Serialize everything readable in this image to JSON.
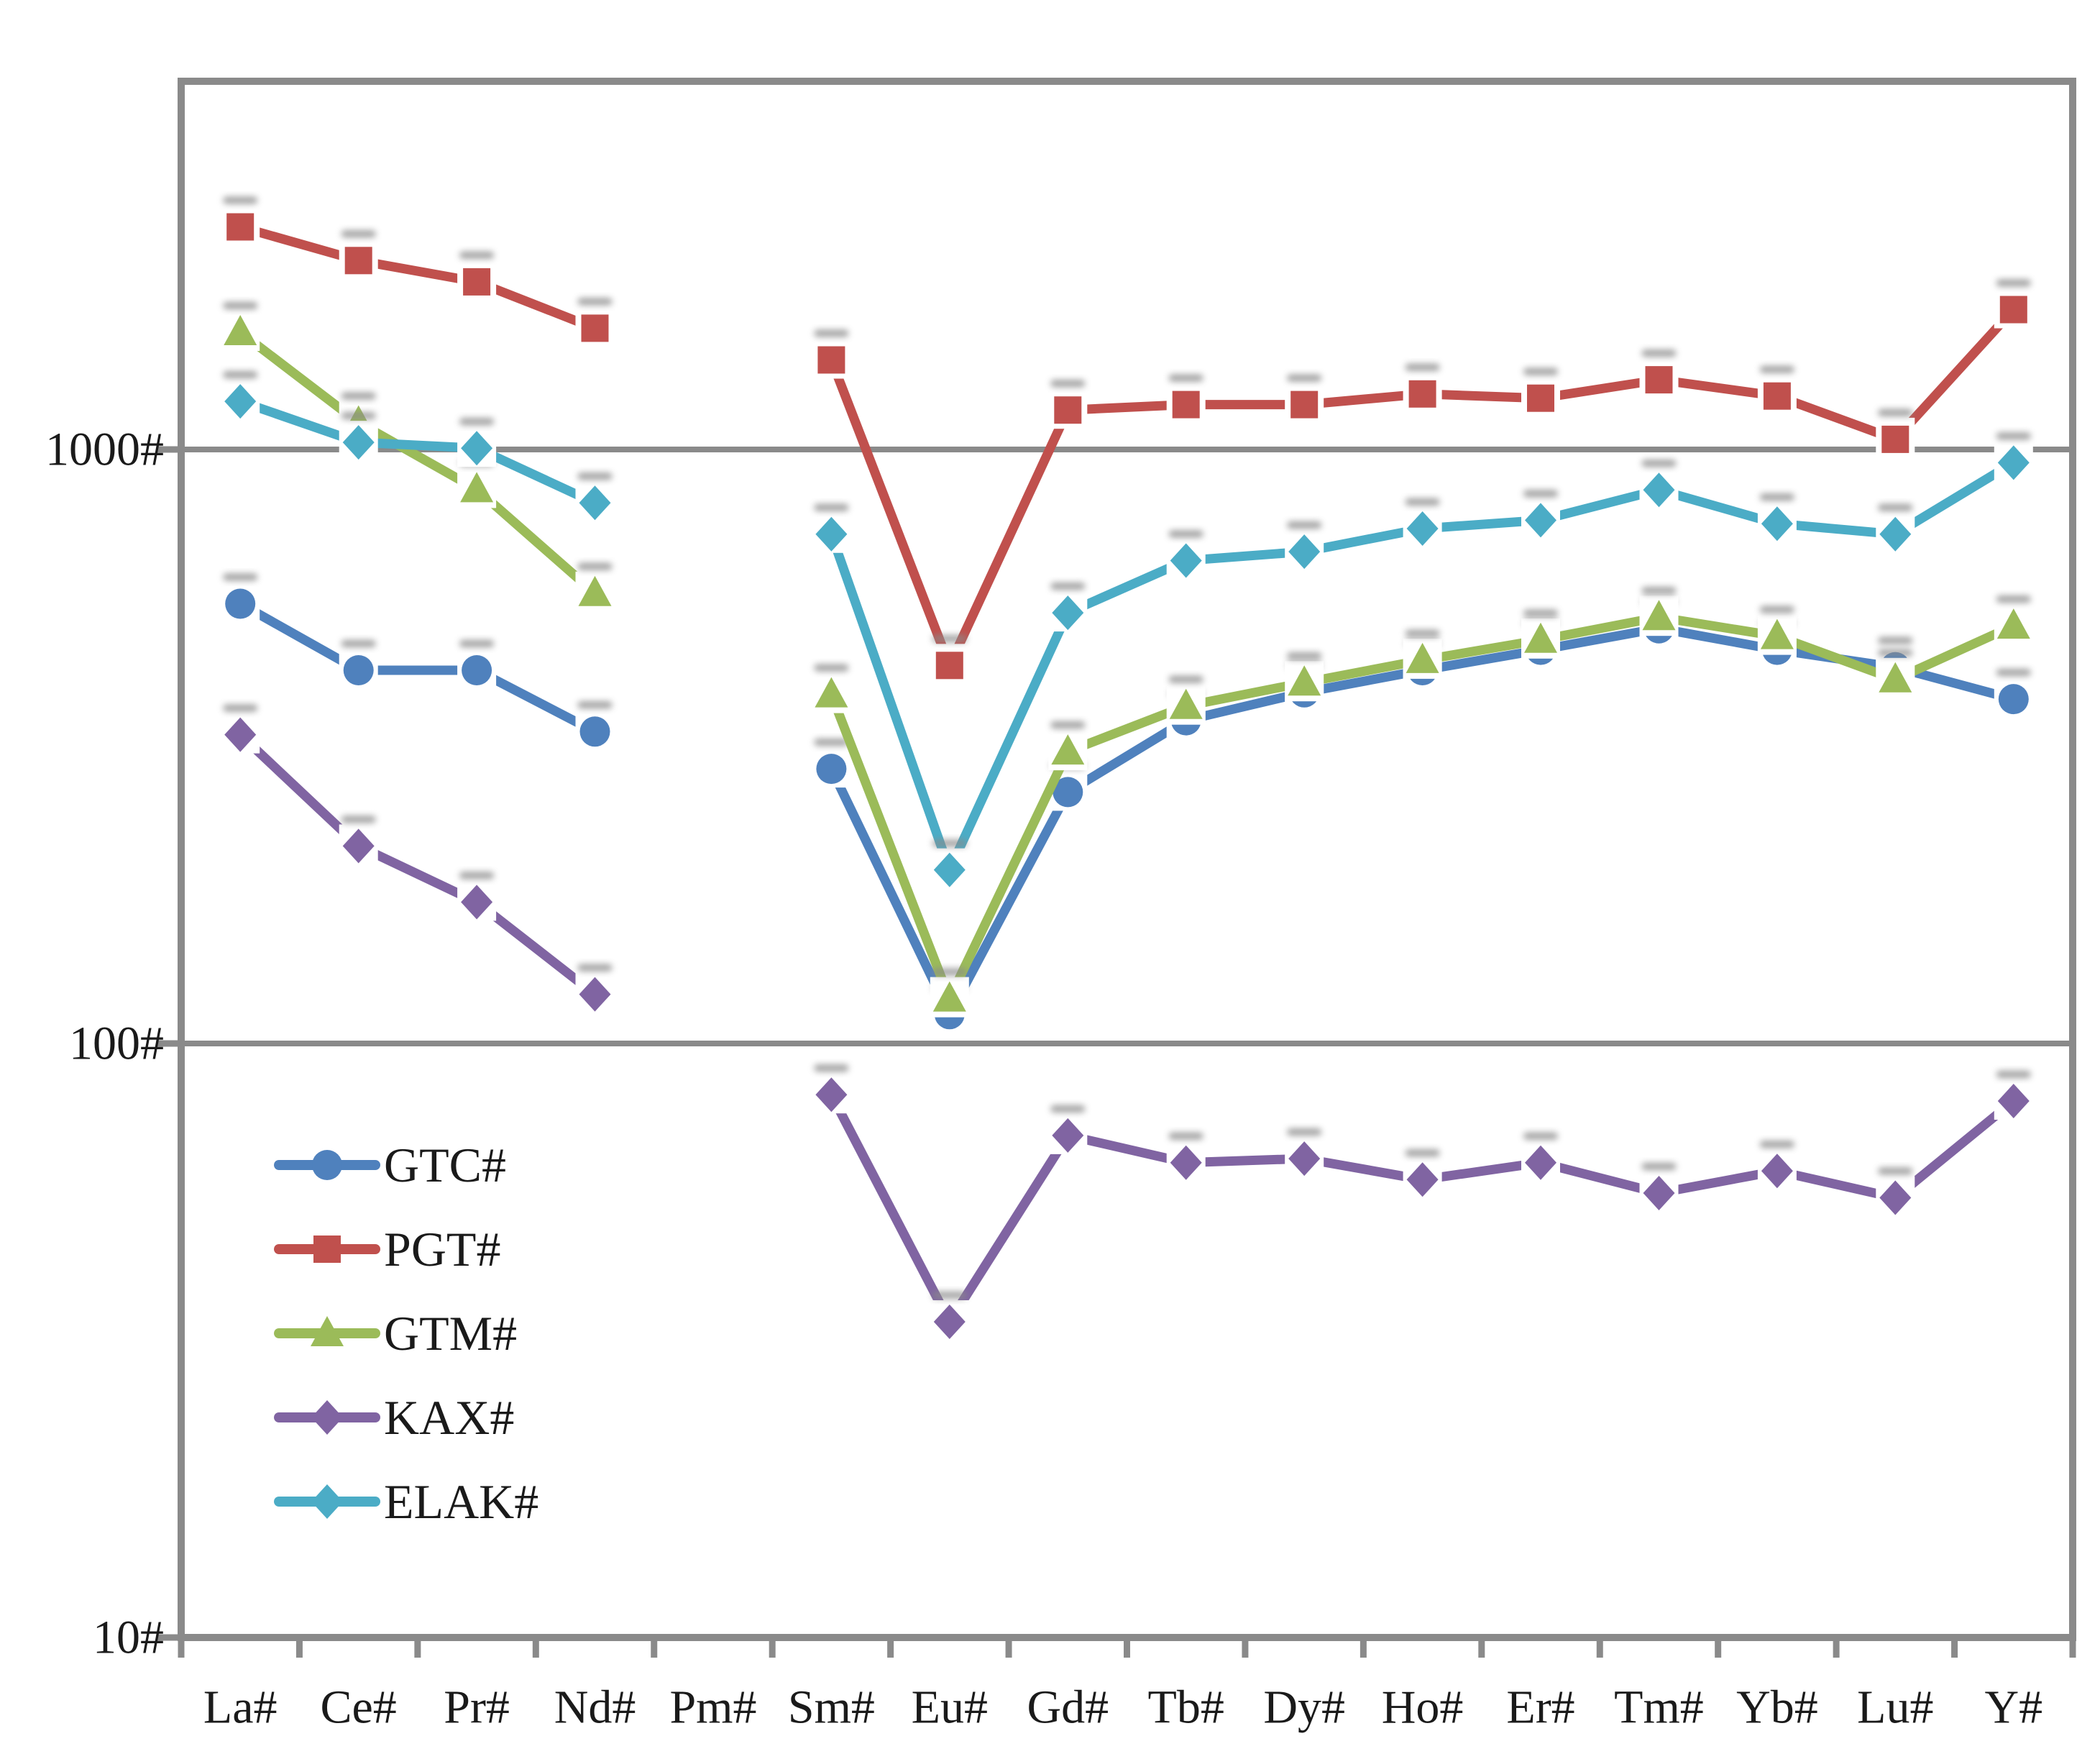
{
  "chart_data": {
    "type": "line",
    "title": "",
    "xlabel": "",
    "ylabel": "",
    "y_scale": "log",
    "ylim": [
      10,
      4170
    ],
    "y_ticks": [
      "10#",
      "100#",
      "1000#"
    ],
    "y_tick_values": [
      10,
      100,
      1000
    ],
    "gridline_values": [
      100,
      1000
    ],
    "grid": "horizontal-only",
    "legend_position": "inside-bottom-left",
    "frame_color": "#8a8a8a",
    "text_color": "#1a1a1a",
    "categories": [
      "La#",
      "Ce#",
      "Pr#",
      "Nd#",
      "Pm#",
      "Sm#",
      "Eu#",
      "Gd#",
      "Tb#",
      "Dy#",
      "Ho#",
      "Er#",
      "Tm#",
      "Yb#",
      "Lu#",
      "Y#"
    ],
    "series": [
      {
        "name": "GTC#",
        "color": "#4F81BD",
        "marker": "circle",
        "values": [
          550,
          425,
          425,
          335,
          null,
          290,
          112,
          265,
          350,
          390,
          425,
          460,
          500,
          460,
          430,
          380
        ]
      },
      {
        "name": "PGT#",
        "color": "#C0504D",
        "marker": "square",
        "values": [
          2370,
          2080,
          1915,
          1600,
          null,
          1415,
          433,
          1165,
          1190,
          1190,
          1240,
          1220,
          1310,
          1230,
          1040,
          1720
        ]
      },
      {
        "name": "GTM#",
        "color": "#9BBB59",
        "marker": "triangle",
        "values": [
          1575,
          1110,
          857,
          573,
          null,
          387,
          119,
          310,
          370,
          405,
          442,
          478,
          522,
          485,
          410,
          505
        ]
      },
      {
        "name": "KAX#",
        "color": "#8064A2",
        "marker": "diamond",
        "values": [
          331,
          215,
          173,
          121,
          null,
          82,
          34,
          70,
          63,
          64,
          59,
          63,
          56,
          61,
          55,
          80
        ]
      },
      {
        "name": "ELAK#",
        "color": "#4BACC6",
        "marker": "diamond",
        "values": [
          1205,
          1028,
          1005,
          813,
          null,
          720,
          196,
          531,
          650,
          673,
          736,
          760,
          855,
          750,
          720,
          950
        ]
      }
    ]
  }
}
